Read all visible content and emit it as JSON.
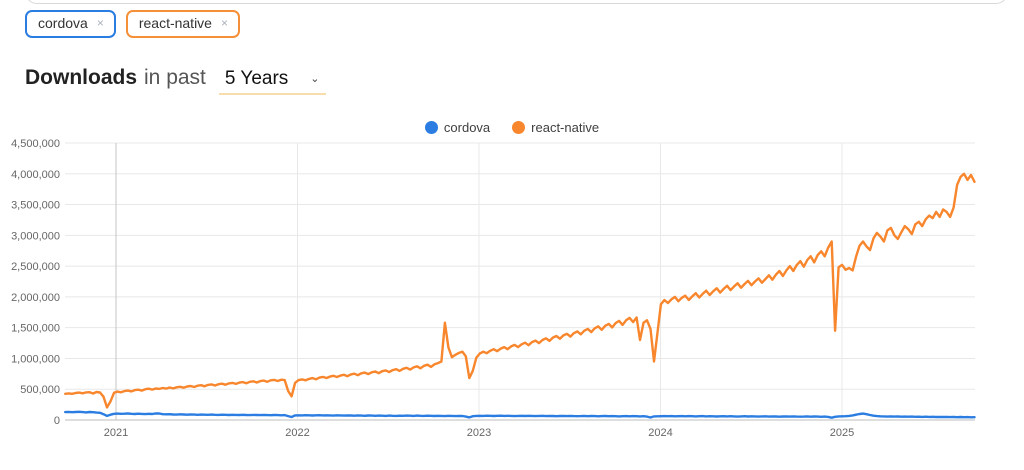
{
  "tags": [
    {
      "label": "cordova",
      "color": "#2b7de1",
      "remove_label": "×"
    },
    {
      "label": "react-native",
      "color": "#f59038",
      "remove_label": "×"
    }
  ],
  "header": {
    "title": "Downloads",
    "subtitle": "in past",
    "range_value": "5 Years",
    "chevron": "⌄"
  },
  "chart_data": {
    "type": "line",
    "title": "",
    "xlabel": "",
    "ylabel": "",
    "legend_position": "top",
    "grid": true,
    "x_unit": "decimal_year",
    "x_start": 2020.72,
    "x_end": 2025.73,
    "ylim": [
      0,
      4500000
    ],
    "value_scale": 1000,
    "y_ticks": [
      {
        "value": 0,
        "label": "0"
      },
      {
        "value": 500000,
        "label": "500,000"
      },
      {
        "value": 1000000,
        "label": "1,000,000"
      },
      {
        "value": 1500000,
        "label": "1,500,000"
      },
      {
        "value": 2000000,
        "label": "2,000,000"
      },
      {
        "value": 2500000,
        "label": "2,500,000"
      },
      {
        "value": 3000000,
        "label": "3,000,000"
      },
      {
        "value": 3500000,
        "label": "3,500,000"
      },
      {
        "value": 4000000,
        "label": "4,000,000"
      },
      {
        "value": 4500000,
        "label": "4,500,000"
      }
    ],
    "x_ticks": [
      {
        "value": 2021,
        "label": "2021"
      },
      {
        "value": 2022,
        "label": "2022"
      },
      {
        "value": 2023,
        "label": "2023"
      },
      {
        "value": 2024,
        "label": "2024"
      },
      {
        "value": 2025,
        "label": "2025"
      }
    ],
    "axis_style": {
      "grid_color": "#e8e8e8",
      "year_2021_grid_color": "#c4c4c4",
      "axis_color": "#bdbdbd",
      "label_color": "#666666"
    },
    "series": [
      {
        "name": "cordova",
        "color": "#2b7de1",
        "values_in_thousands": [
          128,
          132,
          126,
          130,
          134,
          128,
          124,
          130,
          126,
          121,
          117,
          95,
          66,
          86,
          100,
          104,
          101,
          103,
          106,
          100,
          98,
          102,
          99,
          96,
          100,
          97,
          108,
          106,
          95,
          92,
          95,
          90,
          88,
          92,
          89,
          86,
          90,
          87,
          85,
          88,
          86,
          84,
          87,
          85,
          83,
          86,
          84,
          82,
          85,
          83,
          81,
          84,
          82,
          80,
          83,
          81,
          79,
          82,
          80,
          78,
          81,
          79,
          77,
          80,
          64,
          48,
          74,
          77,
          75,
          78,
          76,
          73,
          76,
          78,
          74,
          77,
          75,
          72,
          76,
          74,
          71,
          75,
          73,
          70,
          74,
          72,
          69,
          73,
          71,
          68,
          72,
          70,
          67,
          71,
          69,
          66,
          70,
          68,
          72,
          70,
          67,
          71,
          69,
          66,
          70,
          68,
          65,
          69,
          67,
          64,
          68,
          66,
          63,
          67,
          65,
          55,
          42,
          62,
          66,
          69,
          67,
          70,
          68,
          65,
          68,
          70,
          66,
          69,
          67,
          64,
          67,
          69,
          65,
          68,
          66,
          63,
          66,
          68,
          64,
          67,
          65,
          62,
          65,
          67,
          63,
          66,
          64,
          61,
          64,
          66,
          62,
          65,
          63,
          60,
          63,
          65,
          61,
          64,
          62,
          59,
          62,
          64,
          60,
          63,
          61,
          58,
          61,
          55,
          40,
          58,
          60,
          62,
          64,
          61,
          63,
          60,
          62,
          64,
          60,
          63,
          61,
          58,
          61,
          63,
          59,
          62,
          60,
          57,
          60,
          62,
          58,
          61,
          59,
          56,
          59,
          61,
          57,
          60,
          58,
          55,
          58,
          60,
          56,
          59,
          57,
          54,
          57,
          59,
          55,
          58,
          56,
          53,
          56,
          58,
          54,
          57,
          55,
          52,
          55,
          50,
          38,
          52,
          58,
          60,
          62,
          66,
          74,
          86,
          98,
          104,
          95,
          82,
          70,
          64,
          60,
          58,
          56,
          58,
          55,
          57,
          54,
          56,
          53,
          55,
          52,
          54,
          51,
          53,
          50,
          52,
          49,
          51,
          48,
          50,
          47,
          49,
          46,
          48,
          45,
          47,
          44,
          46
        ]
      },
      {
        "name": "react-native",
        "color": "#f8862d",
        "values_in_thousands": [
          425,
          432,
          426,
          438,
          445,
          434,
          448,
          452,
          430,
          455,
          446,
          378,
          205,
          302,
          442,
          462,
          450,
          470,
          478,
          465,
          485,
          492,
          478,
          500,
          508,
          494,
          512,
          505,
          520,
          510,
          528,
          514,
          532,
          540,
          524,
          545,
          552,
          536,
          558,
          565,
          548,
          570,
          578,
          560,
          582,
          590,
          574,
          595,
          602,
          586,
          608,
          615,
          597,
          620,
          628,
          610,
          632,
          640,
          621,
          645,
          652,
          634,
          655,
          648,
          470,
          385,
          605,
          648,
          660,
          645,
          668,
          680,
          662,
          688,
          700,
          682,
          705,
          718,
          698,
          722,
          735,
          712,
          740,
          752,
          728,
          758,
          770,
          745,
          775,
          788,
          760,
          792,
          805,
          778,
          810,
          825,
          798,
          832,
          848,
          818,
          855,
          872,
          840,
          880,
          898,
          862,
          905,
          925,
          950,
          1580,
          1180,
          1020,
          1060,
          1090,
          1110,
          1035,
          680,
          800,
          1010,
          1080,
          1110,
          1085,
          1125,
          1150,
          1118,
          1160,
          1185,
          1150,
          1195,
          1220,
          1185,
          1230,
          1255,
          1215,
          1265,
          1290,
          1250,
          1300,
          1328,
          1285,
          1338,
          1365,
          1320,
          1375,
          1400,
          1355,
          1410,
          1440,
          1392,
          1450,
          1480,
          1428,
          1490,
          1520,
          1465,
          1530,
          1562,
          1505,
          1575,
          1610,
          1545,
          1620,
          1658,
          1590,
          1665,
          1300,
          1580,
          1620,
          1480,
          950,
          1420,
          1880,
          1950,
          1900,
          1960,
          2000,
          1930,
          1985,
          2020,
          1950,
          2010,
          2060,
          1990,
          2050,
          2100,
          2030,
          2090,
          2140,
          2070,
          2130,
          2180,
          2110,
          2170,
          2220,
          2150,
          2210,
          2260,
          2190,
          2250,
          2300,
          2230,
          2290,
          2350,
          2280,
          2360,
          2420,
          2340,
          2430,
          2500,
          2420,
          2520,
          2580,
          2490,
          2600,
          2660,
          2560,
          2680,
          2740,
          2660,
          2800,
          2900,
          1450,
          2480,
          2520,
          2440,
          2470,
          2430,
          2650,
          2830,
          2900,
          2820,
          2760,
          2950,
          3040,
          2980,
          2900,
          3080,
          3120,
          3000,
          2940,
          3050,
          3150,
          3100,
          3020,
          3180,
          3220,
          3150,
          3260,
          3320,
          3280,
          3380,
          3300,
          3420,
          3380,
          3300,
          3450,
          3820,
          3950,
          4000,
          3900,
          3980,
          3870
        ]
      }
    ]
  }
}
